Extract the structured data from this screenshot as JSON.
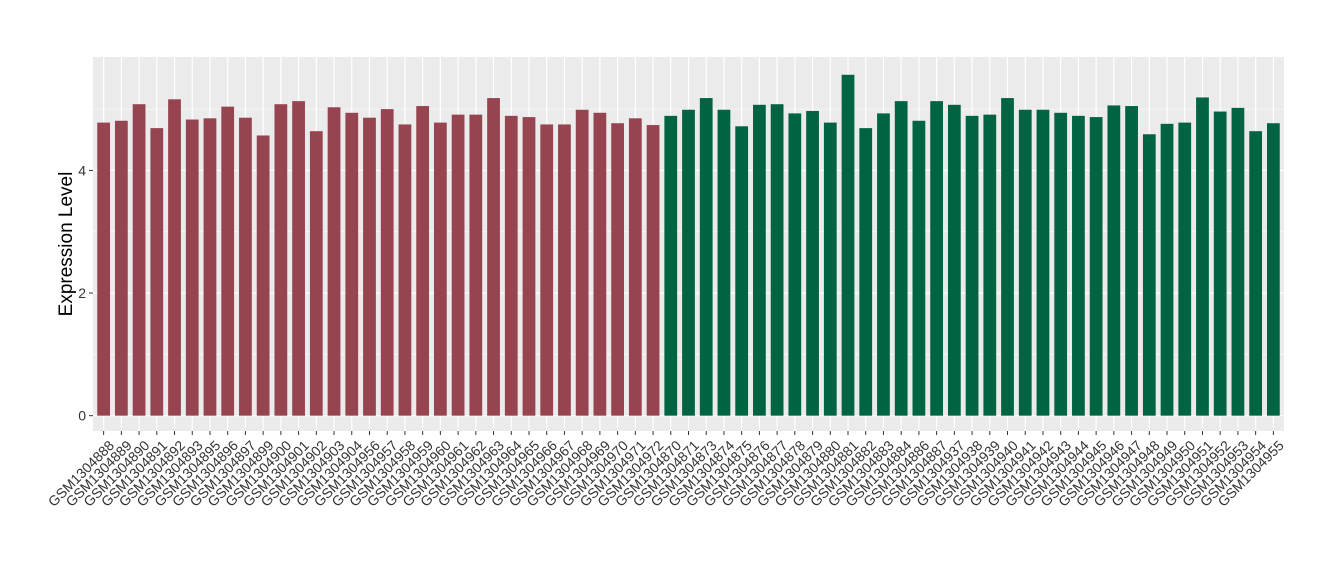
{
  "chart_data": {
    "type": "bar",
    "ylabel": "Expression Level",
    "xlabel": "",
    "ylim": [
      -0.25,
      5.85
    ],
    "y_ticks": [
      0,
      2,
      4
    ],
    "grid": true,
    "legend": "none",
    "categories": [
      "GSM1304888",
      "GSM1304889",
      "GSM1304890",
      "GSM1304891",
      "GSM1304892",
      "GSM1304893",
      "GSM1304895",
      "GSM1304896",
      "GSM1304897",
      "GSM1304899",
      "GSM1304900",
      "GSM1304901",
      "GSM1304902",
      "GSM1304903",
      "GSM1304904",
      "GSM1304956",
      "GSM1304957",
      "GSM1304958",
      "GSM1304959",
      "GSM1304960",
      "GSM1304961",
      "GSM1304962",
      "GSM1304963",
      "GSM1304964",
      "GSM1304965",
      "GSM1304966",
      "GSM1304967",
      "GSM1304968",
      "GSM1304969",
      "GSM1304970",
      "GSM1304971",
      "GSM1304972",
      "GSM1304870",
      "GSM1304871",
      "GSM1304873",
      "GSM1304874",
      "GSM1304875",
      "GSM1304876",
      "GSM1304877",
      "GSM1304878",
      "GSM1304879",
      "GSM1304880",
      "GSM1304881",
      "GSM1304882",
      "GSM1304883",
      "GSM1304884",
      "GSM1304886",
      "GSM1304887",
      "GSM1304937",
      "GSM1304938",
      "GSM1304939",
      "GSM1304940",
      "GSM1304941",
      "GSM1304942",
      "GSM1304943",
      "GSM1304944",
      "GSM1304945",
      "GSM1304946",
      "GSM1304947",
      "GSM1304948",
      "GSM1304949",
      "GSM1304950",
      "GSM1304951",
      "GSM1304952",
      "GSM1304953",
      "GSM1304954",
      "GSM1304955"
    ],
    "values": [
      4.78,
      4.81,
      5.08,
      4.69,
      5.16,
      4.83,
      4.85,
      5.04,
      4.86,
      4.57,
      5.08,
      5.13,
      4.64,
      5.03,
      4.94,
      4.86,
      5.0,
      4.75,
      5.05,
      4.78,
      4.91,
      4.91,
      5.18,
      4.89,
      4.87,
      4.75,
      4.75,
      4.99,
      4.94,
      4.77,
      4.85,
      4.74,
      4.89,
      4.99,
      5.18,
      4.99,
      4.72,
      5.07,
      5.08,
      4.93,
      4.97,
      4.78,
      5.56,
      4.69,
      4.93,
      5.13,
      4.81,
      5.13,
      5.07,
      4.89,
      4.91,
      5.18,
      4.99,
      4.99,
      4.94,
      4.89,
      4.87,
      5.06,
      5.05,
      4.59,
      4.76,
      4.78,
      5.19,
      4.96,
      5.02,
      4.64,
      4.77
    ],
    "group_sizes": [
      32,
      35
    ],
    "colors": {
      "group_1": "#96444f",
      "group_2": "#006443",
      "panel": "#ebebeb",
      "grid": "#ffffff"
    }
  }
}
